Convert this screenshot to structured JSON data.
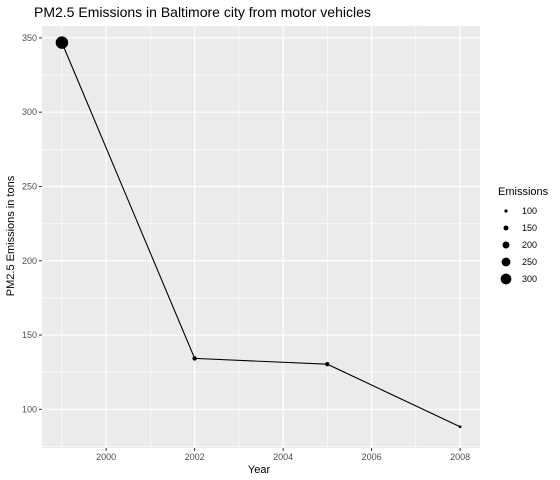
{
  "chart_data": {
    "type": "scatter",
    "title": "PM2.5 Emissions in Baltimore city from motor vehicles",
    "xlabel": "Year",
    "ylabel": "PM2.5 Emissions in tons",
    "xlim": [
      1998.55,
      2008.45
    ],
    "ylim": [
      74,
      358
    ],
    "x_ticks": [
      2000,
      2002,
      2004,
      2006,
      2008
    ],
    "y_ticks": [
      100,
      150,
      200,
      250,
      300,
      350
    ],
    "grid": true,
    "series": [
      {
        "x": [
          1999,
          2002,
          2005,
          2008
        ],
        "y": [
          346.8,
          134.3,
          130.4,
          88.3
        ],
        "size_values": [
          346.8,
          134.3,
          130.4,
          88.3
        ],
        "connected": true
      }
    ],
    "legend": {
      "title": "Emissions",
      "placement": "right",
      "entries": [
        100,
        150,
        200,
        250,
        300
      ]
    },
    "colors": {
      "panel": "#ebebeb",
      "grid": "#ffffff",
      "marks": "#000000"
    }
  }
}
